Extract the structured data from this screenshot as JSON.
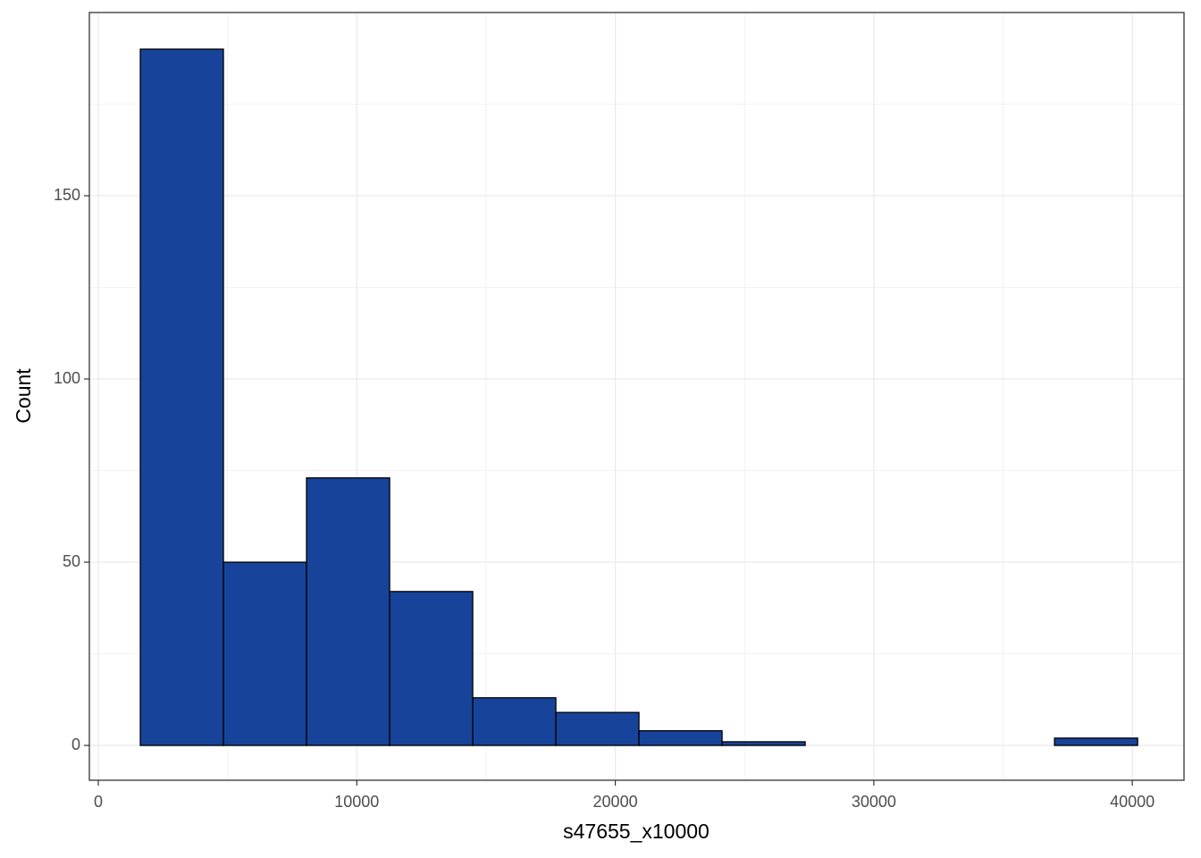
{
  "chart_data": {
    "type": "histogram",
    "x_label": "s47655_x10000",
    "y_label": "Count",
    "bins": [
      1625,
      4840,
      8055,
      11270,
      14485,
      17700,
      20915,
      24130,
      27345,
      30560,
      33775,
      36990,
      40205
    ],
    "values": [
      190,
      50,
      73,
      42,
      13,
      9,
      4,
      1,
      0,
      0,
      0,
      2
    ],
    "color": "#17449a",
    "xlim": [
      -346,
      42000
    ],
    "xticks": [
      0,
      10000,
      20000,
      30000,
      40000
    ],
    "ylim": [
      -9.5,
      200
    ],
    "yticks": [
      0,
      50,
      100,
      150
    ],
    "grid": true,
    "minor_grid": true
  }
}
